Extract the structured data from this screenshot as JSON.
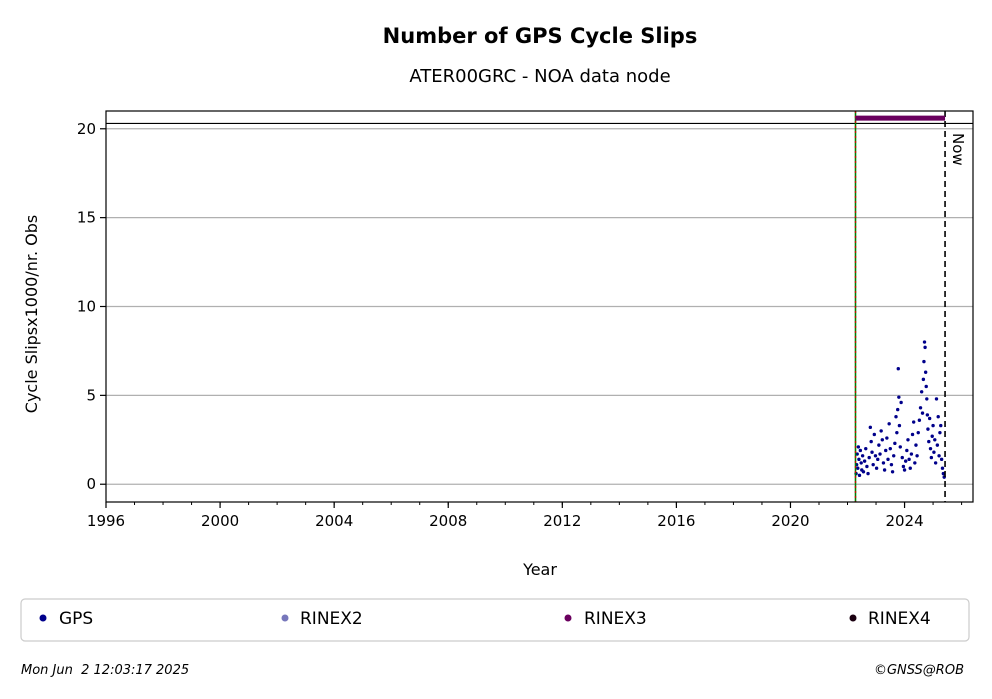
{
  "chart_data": {
    "type": "scatter",
    "title": "Number of GPS Cycle Slips",
    "subtitle": "ATER00GRC - NOA data node",
    "xlabel": "Year",
    "ylabel": "Cycle Slipsx1000/nr. Obs",
    "xlim": [
      1996,
      2026.4
    ],
    "ylim": [
      -1,
      21
    ],
    "xticks": [
      1996,
      2000,
      2004,
      2008,
      2012,
      2016,
      2020,
      2024
    ],
    "yticks": [
      0,
      5,
      10,
      15,
      20
    ],
    "grid": "horizontal",
    "now_label": "Now",
    "now_x": 2025.42,
    "station_start_x": 2022.28,
    "upper_reference_y": 20.3,
    "rinex3_availability": {
      "x": [
        2022.28,
        2025.42
      ],
      "y": 20.6
    },
    "series": [
      {
        "name": "GPS",
        "color": "#00008b",
        "marker": "dot"
      },
      {
        "name": "RINEX2",
        "color": "#7777bb",
        "marker": "dot"
      },
      {
        "name": "RINEX3",
        "color": "#6a005e",
        "marker": "dot"
      },
      {
        "name": "RINEX4",
        "color": "#1a0010",
        "marker": "dot"
      }
    ],
    "gps_points": [
      [
        2022.3,
        0.6
      ],
      [
        2022.32,
        1.1
      ],
      [
        2022.34,
        1.7
      ],
      [
        2022.36,
        0.9
      ],
      [
        2022.38,
        2.1
      ],
      [
        2022.4,
        1.4
      ],
      [
        2022.42,
        0.5
      ],
      [
        2022.45,
        1.9
      ],
      [
        2022.48,
        1.2
      ],
      [
        2022.5,
        0.8
      ],
      [
        2022.53,
        1.6
      ],
      [
        2022.56,
        0.7
      ],
      [
        2022.6,
        1.3
      ],
      [
        2022.64,
        2.0
      ],
      [
        2022.68,
        1.0
      ],
      [
        2022.72,
        0.6
      ],
      [
        2022.76,
        1.5
      ],
      [
        2022.8,
        3.2
      ],
      [
        2022.83,
        2.4
      ],
      [
        2022.86,
        1.8
      ],
      [
        2022.9,
        1.1
      ],
      [
        2022.94,
        2.8
      ],
      [
        2022.98,
        1.6
      ],
      [
        2023.02,
        0.9
      ],
      [
        2023.06,
        1.4
      ],
      [
        2023.1,
        2.2
      ],
      [
        2023.14,
        1.7
      ],
      [
        2023.18,
        3.0
      ],
      [
        2023.22,
        2.5
      ],
      [
        2023.26,
        1.2
      ],
      [
        2023.3,
        0.8
      ],
      [
        2023.34,
        1.9
      ],
      [
        2023.38,
        2.6
      ],
      [
        2023.42,
        1.4
      ],
      [
        2023.46,
        3.4
      ],
      [
        2023.5,
        2.0
      ],
      [
        2023.54,
        1.1
      ],
      [
        2023.58,
        0.7
      ],
      [
        2023.62,
        1.6
      ],
      [
        2023.66,
        2.3
      ],
      [
        2023.7,
        3.8
      ],
      [
        2023.73,
        2.9
      ],
      [
        2023.76,
        4.2
      ],
      [
        2023.78,
        6.5
      ],
      [
        2023.8,
        4.9
      ],
      [
        2023.82,
        3.3
      ],
      [
        2023.85,
        2.1
      ],
      [
        2023.88,
        4.6
      ],
      [
        2023.92,
        1.5
      ],
      [
        2023.96,
        1.0
      ],
      [
        2024.0,
        0.8
      ],
      [
        2024.04,
        1.3
      ],
      [
        2024.08,
        1.9
      ],
      [
        2024.12,
        2.5
      ],
      [
        2024.16,
        1.4
      ],
      [
        2024.2,
        0.9
      ],
      [
        2024.24,
        1.7
      ],
      [
        2024.28,
        2.8
      ],
      [
        2024.32,
        3.5
      ],
      [
        2024.36,
        1.2
      ],
      [
        2024.4,
        2.2
      ],
      [
        2024.44,
        1.6
      ],
      [
        2024.48,
        2.9
      ],
      [
        2024.52,
        3.6
      ],
      [
        2024.56,
        4.3
      ],
      [
        2024.6,
        5.2
      ],
      [
        2024.63,
        4.0
      ],
      [
        2024.66,
        5.9
      ],
      [
        2024.68,
        6.9
      ],
      [
        2024.7,
        8.0
      ],
      [
        2024.72,
        7.7
      ],
      [
        2024.74,
        6.3
      ],
      [
        2024.76,
        5.5
      ],
      [
        2024.78,
        4.8
      ],
      [
        2024.8,
        3.9
      ],
      [
        2024.82,
        3.1
      ],
      [
        2024.85,
        2.4
      ],
      [
        2024.88,
        3.7
      ],
      [
        2024.91,
        2.0
      ],
      [
        2024.94,
        1.5
      ],
      [
        2024.97,
        2.7
      ],
      [
        2025.0,
        3.3
      ],
      [
        2025.03,
        1.8
      ],
      [
        2025.06,
        2.5
      ],
      [
        2025.09,
        1.2
      ],
      [
        2025.12,
        4.8
      ],
      [
        2025.15,
        2.2
      ],
      [
        2025.18,
        3.8
      ],
      [
        2025.21,
        1.6
      ],
      [
        2025.24,
        2.9
      ],
      [
        2025.27,
        3.3
      ],
      [
        2025.3,
        1.4
      ],
      [
        2025.33,
        0.9
      ],
      [
        2025.36,
        0.6
      ],
      [
        2025.39,
        0.4
      ]
    ]
  },
  "legend": {
    "items": [
      {
        "label": "GPS",
        "color": "#00008b"
      },
      {
        "label": "RINEX2",
        "color": "#7777bb"
      },
      {
        "label": "RINEX3",
        "color": "#6a005e"
      },
      {
        "label": "RINEX4",
        "color": "#1a0010"
      }
    ]
  },
  "footer": {
    "timestamp": "Mon Jun  2 12:03:17 2025",
    "copyright": "©GNSS@ROB"
  }
}
